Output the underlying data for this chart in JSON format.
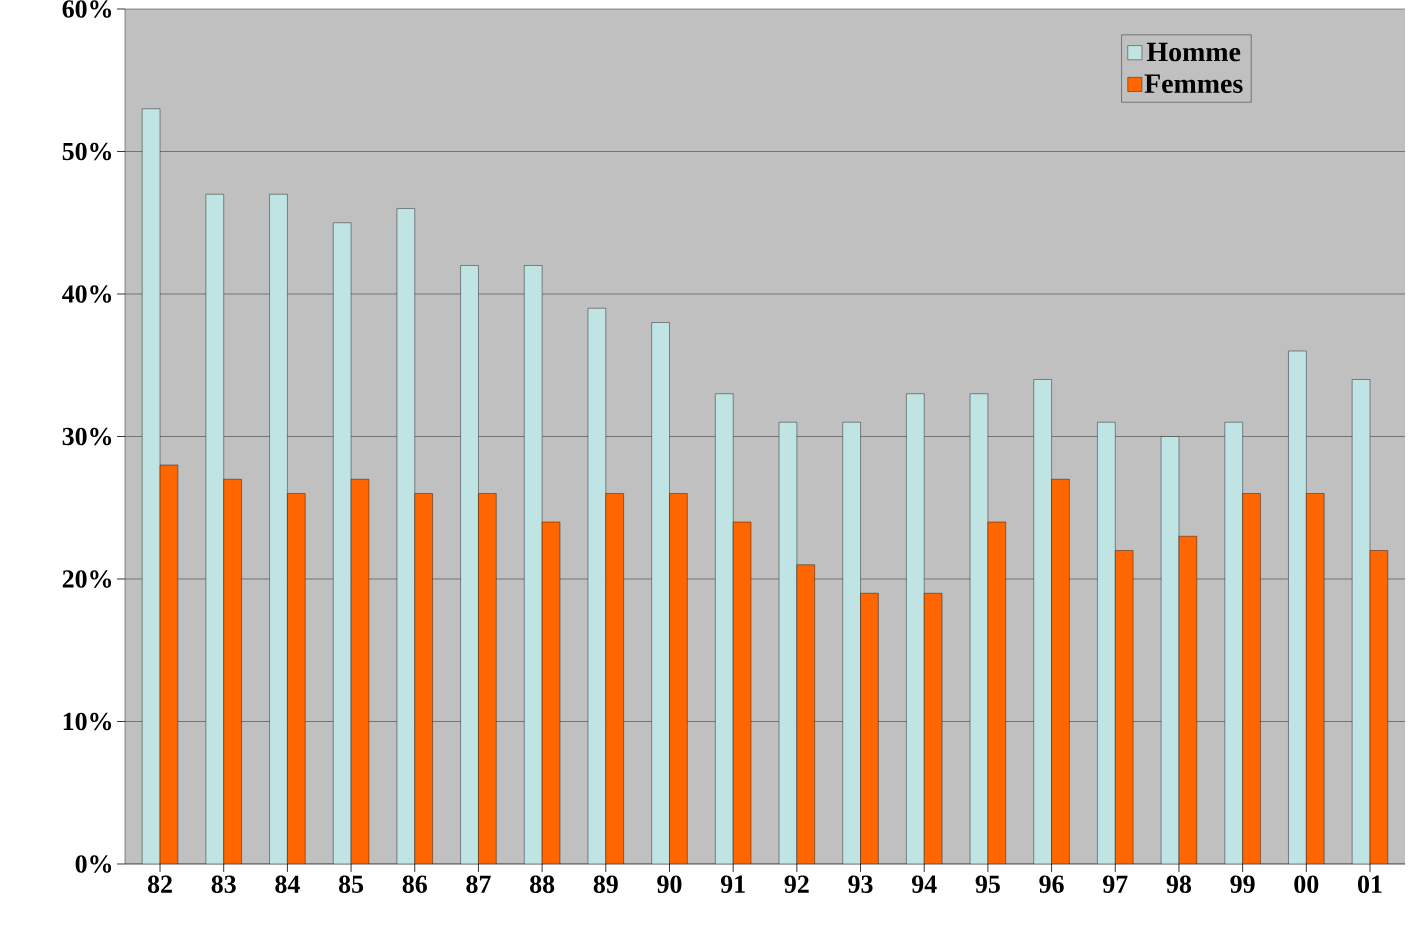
{
  "chart_data": {
    "type": "bar",
    "categories": [
      "82",
      "83",
      "84",
      "85",
      "86",
      "87",
      "88",
      "89",
      "90",
      "91",
      "92",
      "93",
      "94",
      "95",
      "96",
      "97",
      "98",
      "99",
      "00",
      "01"
    ],
    "series": [
      {
        "name": "Homme",
        "color": "#c0e4e4",
        "values": [
          53,
          47,
          47,
          45,
          46,
          42,
          42,
          39,
          38,
          33,
          31,
          31,
          33,
          33,
          34,
          31,
          30,
          31,
          36,
          34
        ]
      },
      {
        "name": "Femmes",
        "color": "#ff6600",
        "values": [
          28,
          27,
          26,
          27,
          26,
          26,
          24,
          26,
          26,
          24,
          21,
          19,
          19,
          24,
          27,
          22,
          23,
          26,
          26,
          22
        ]
      }
    ],
    "ylim": [
      0,
      60
    ],
    "yticks": [
      {
        "value": 0,
        "label": "0%"
      },
      {
        "value": 10,
        "label": "10%"
      },
      {
        "value": 20,
        "label": "20%"
      },
      {
        "value": 30,
        "label": "30%"
      },
      {
        "value": 40,
        "label": "40%"
      },
      {
        "value": 50,
        "label": "50%"
      },
      {
        "value": 60,
        "label": "60%"
      }
    ],
    "grid": "y",
    "legend": "top right"
  }
}
